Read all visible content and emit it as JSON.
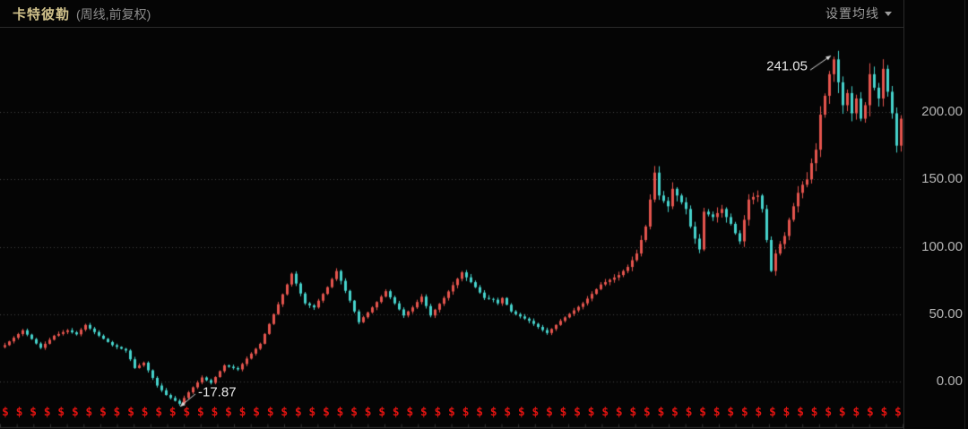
{
  "header": {
    "title": "卡特彼勒",
    "subtitle": "(周线,前复权)",
    "ma_settings_label": "设置均线"
  },
  "colors": {
    "background": "#050505",
    "title": "#d2c38c",
    "subtitle": "#8c8c8c",
    "control": "#9d9d9d",
    "axis_label": "#b3b3b3",
    "grid": "#454545",
    "border": "#2b2b2b",
    "up_candle": "#e5554e",
    "down_candle": "#46d3cc",
    "dividend_marker": "#e01310",
    "annotation_text": "#e8e8e8",
    "arrow": "#d9d9d9"
  },
  "y_axis": {
    "labels": [
      "200.00",
      "150.00",
      "100.00",
      "50.00",
      "0.00"
    ],
    "values": [
      200,
      150,
      100,
      50,
      0
    ]
  },
  "annotations": {
    "high": {
      "label": "241.05",
      "value": 241.05
    },
    "low": {
      "label": "-17.87",
      "value": -17.87
    }
  },
  "dividend_markers": {
    "symbol": "$",
    "count": 65
  },
  "chart_data": {
    "type": "candlestick",
    "title": "卡特彼勒 (周线,前复权)",
    "xlabel": "",
    "ylabel": "",
    "x_tick_labels": [],
    "y_ticks": [
      0,
      50,
      100,
      150,
      200
    ],
    "ylim": [
      -30,
      258
    ],
    "grid": "horizontal dotted",
    "legend": "none",
    "color_convention": "red = up week, cyan = down week",
    "n_candles": 201,
    "high_annotation": 241.05,
    "low_annotation": -17.87,
    "closes": [
      27,
      29.8,
      32.5,
      35.2,
      38,
      34.8,
      31.5,
      28.2,
      25,
      28,
      31,
      34,
      35.3,
      36.7,
      38,
      36.5,
      35,
      38.5,
      42,
      39.3,
      36.7,
      34,
      31.7,
      29.3,
      27,
      25.7,
      24.3,
      23,
      16.5,
      10,
      12,
      14,
      8.3,
      2.7,
      -3,
      -6.5,
      -10,
      -12.2,
      -14.3,
      -16.5,
      -12.2,
      -8,
      -4.3,
      -0.7,
      3,
      1,
      -1,
      3.3,
      7.7,
      12,
      11,
      10,
      9,
      13,
      17,
      20.7,
      24.3,
      28,
      35.3,
      42.7,
      50,
      57.3,
      64.7,
      72,
      80,
      72.7,
      65.3,
      58,
      56.5,
      55,
      60,
      65,
      70,
      76,
      82,
      74.7,
      67.3,
      60,
      52,
      44,
      47.7,
      51.3,
      55,
      59,
      63,
      67,
      62.5,
      58,
      53.5,
      49,
      52,
      55,
      59,
      63,
      56,
      49,
      53.3,
      57.7,
      62,
      66.8,
      71.5,
      76.2,
      81,
      77.3,
      73.7,
      70,
      66,
      62,
      61.3,
      60.7,
      58,
      62,
      57,
      52,
      50,
      48.3,
      46.7,
      45,
      42.8,
      40.5,
      38.2,
      36,
      39,
      42,
      45,
      47.6,
      50.2,
      52.8,
      55.4,
      58,
      61.5,
      65,
      68.5,
      72,
      73.8,
      75.5,
      77.2,
      79,
      82,
      85,
      90,
      95,
      105,
      115,
      135,
      155,
      138,
      134,
      130,
      143,
      138,
      133,
      128,
      115,
      106,
      98,
      126,
      124,
      122,
      125,
      128,
      122,
      117,
      110,
      104,
      120,
      135,
      137,
      138,
      128,
      105,
      82,
      95,
      102,
      108,
      120,
      130,
      140,
      146,
      150,
      162,
      172,
      198,
      212,
      228,
      239,
      222,
      205,
      214,
      199,
      210,
      195,
      205,
      228,
      218,
      210,
      232,
      215,
      199,
      175,
      195
    ]
  }
}
